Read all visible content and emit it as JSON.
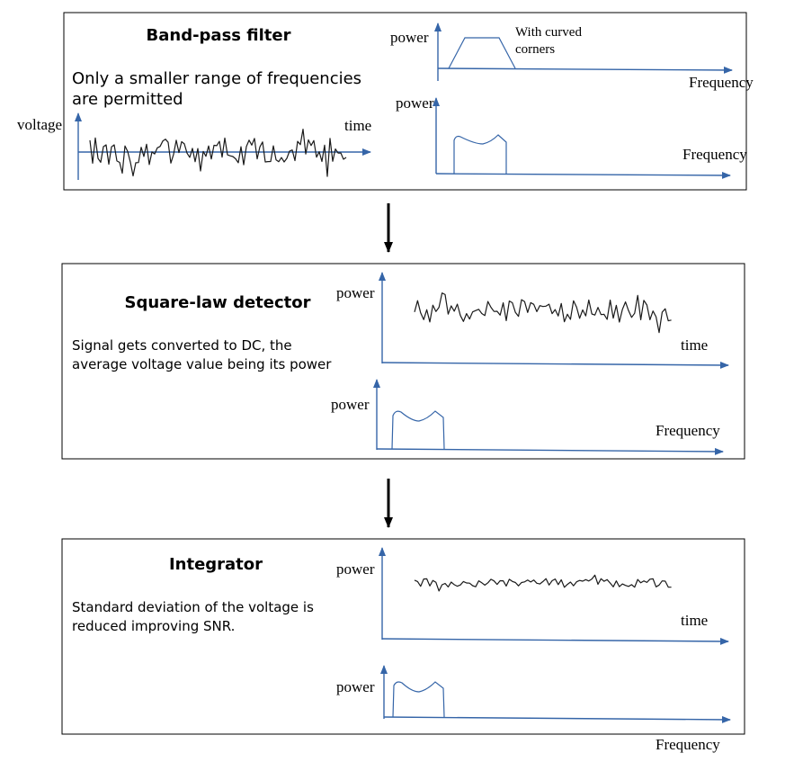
{
  "panels": [
    {
      "title": "Band-pass filter",
      "desc_lines": [
        "Only a smaller range of frequencies",
        "are permitted"
      ],
      "time_plot": {
        "ylabel": "voltage",
        "xlabel": "time"
      },
      "spectrum_top": {
        "ylabel": "power",
        "xlabel": "Frequency",
        "annotation_lines": [
          "With curved",
          "corners"
        ]
      },
      "spectrum_bottom": {
        "ylabel": "power",
        "xlabel": "Frequency"
      }
    },
    {
      "title": "Square-law detector",
      "desc_lines": [
        "Signal gets converted to DC, the",
        "average voltage value being its power"
      ],
      "time_plot": {
        "ylabel": "power",
        "xlabel": "time"
      },
      "spectrum": {
        "ylabel": "power",
        "xlabel": "Frequency"
      }
    },
    {
      "title": "Integrator",
      "desc_lines": [
        "Standard deviation of the voltage is",
        "reduced improving SNR."
      ],
      "time_plot": {
        "ylabel": "power",
        "xlabel": "time"
      },
      "spectrum": {
        "ylabel": "power",
        "xlabel": "Frequency"
      }
    }
  ],
  "colors": {
    "axis": "#3565a8",
    "trace": "#1a1a1a",
    "border": "#000000"
  }
}
